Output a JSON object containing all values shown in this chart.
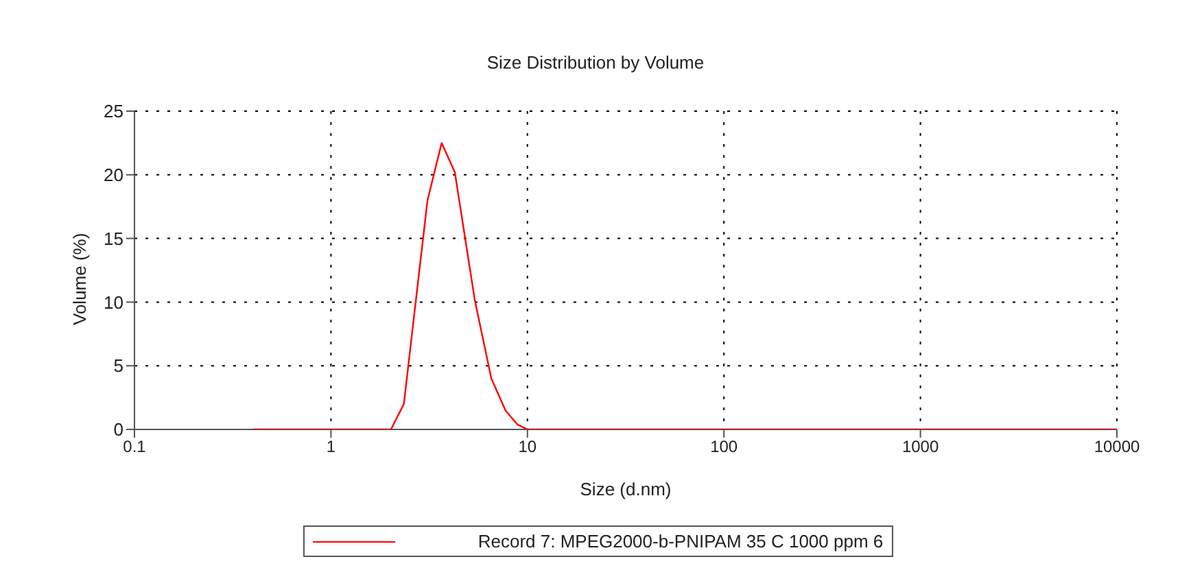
{
  "chart_data": {
    "type": "line",
    "title": "Size Distribution by Volume",
    "xlabel": "Size (d.nm)",
    "ylabel": "Volume (%)",
    "log": "x",
    "xlim": [
      0.1,
      10000
    ],
    "xticks": [
      0.1,
      1,
      10,
      100,
      1000,
      10000
    ],
    "ylim": [
      0,
      25
    ],
    "yticks": [
      0,
      5,
      10,
      15,
      20,
      25
    ],
    "grid": true,
    "legend": "bottom",
    "marker": "none",
    "line_style": "solid",
    "series": [
      {
        "name": "Record 7: MPEG2000-b-PNIPAM 35 C 1000 ppm 6",
        "color": "#ff0000",
        "x": [
          0.4,
          1,
          2.02,
          2.35,
          3.1,
          3.66,
          4.27,
          5.39,
          6.55,
          7.73,
          8.87,
          10,
          100,
          1000,
          10000
        ],
        "values": [
          0,
          0,
          0,
          2.0,
          18.0,
          22.5,
          20.2,
          10.2,
          4.0,
          1.5,
          0.4,
          0,
          0,
          0,
          0
        ]
      }
    ]
  }
}
